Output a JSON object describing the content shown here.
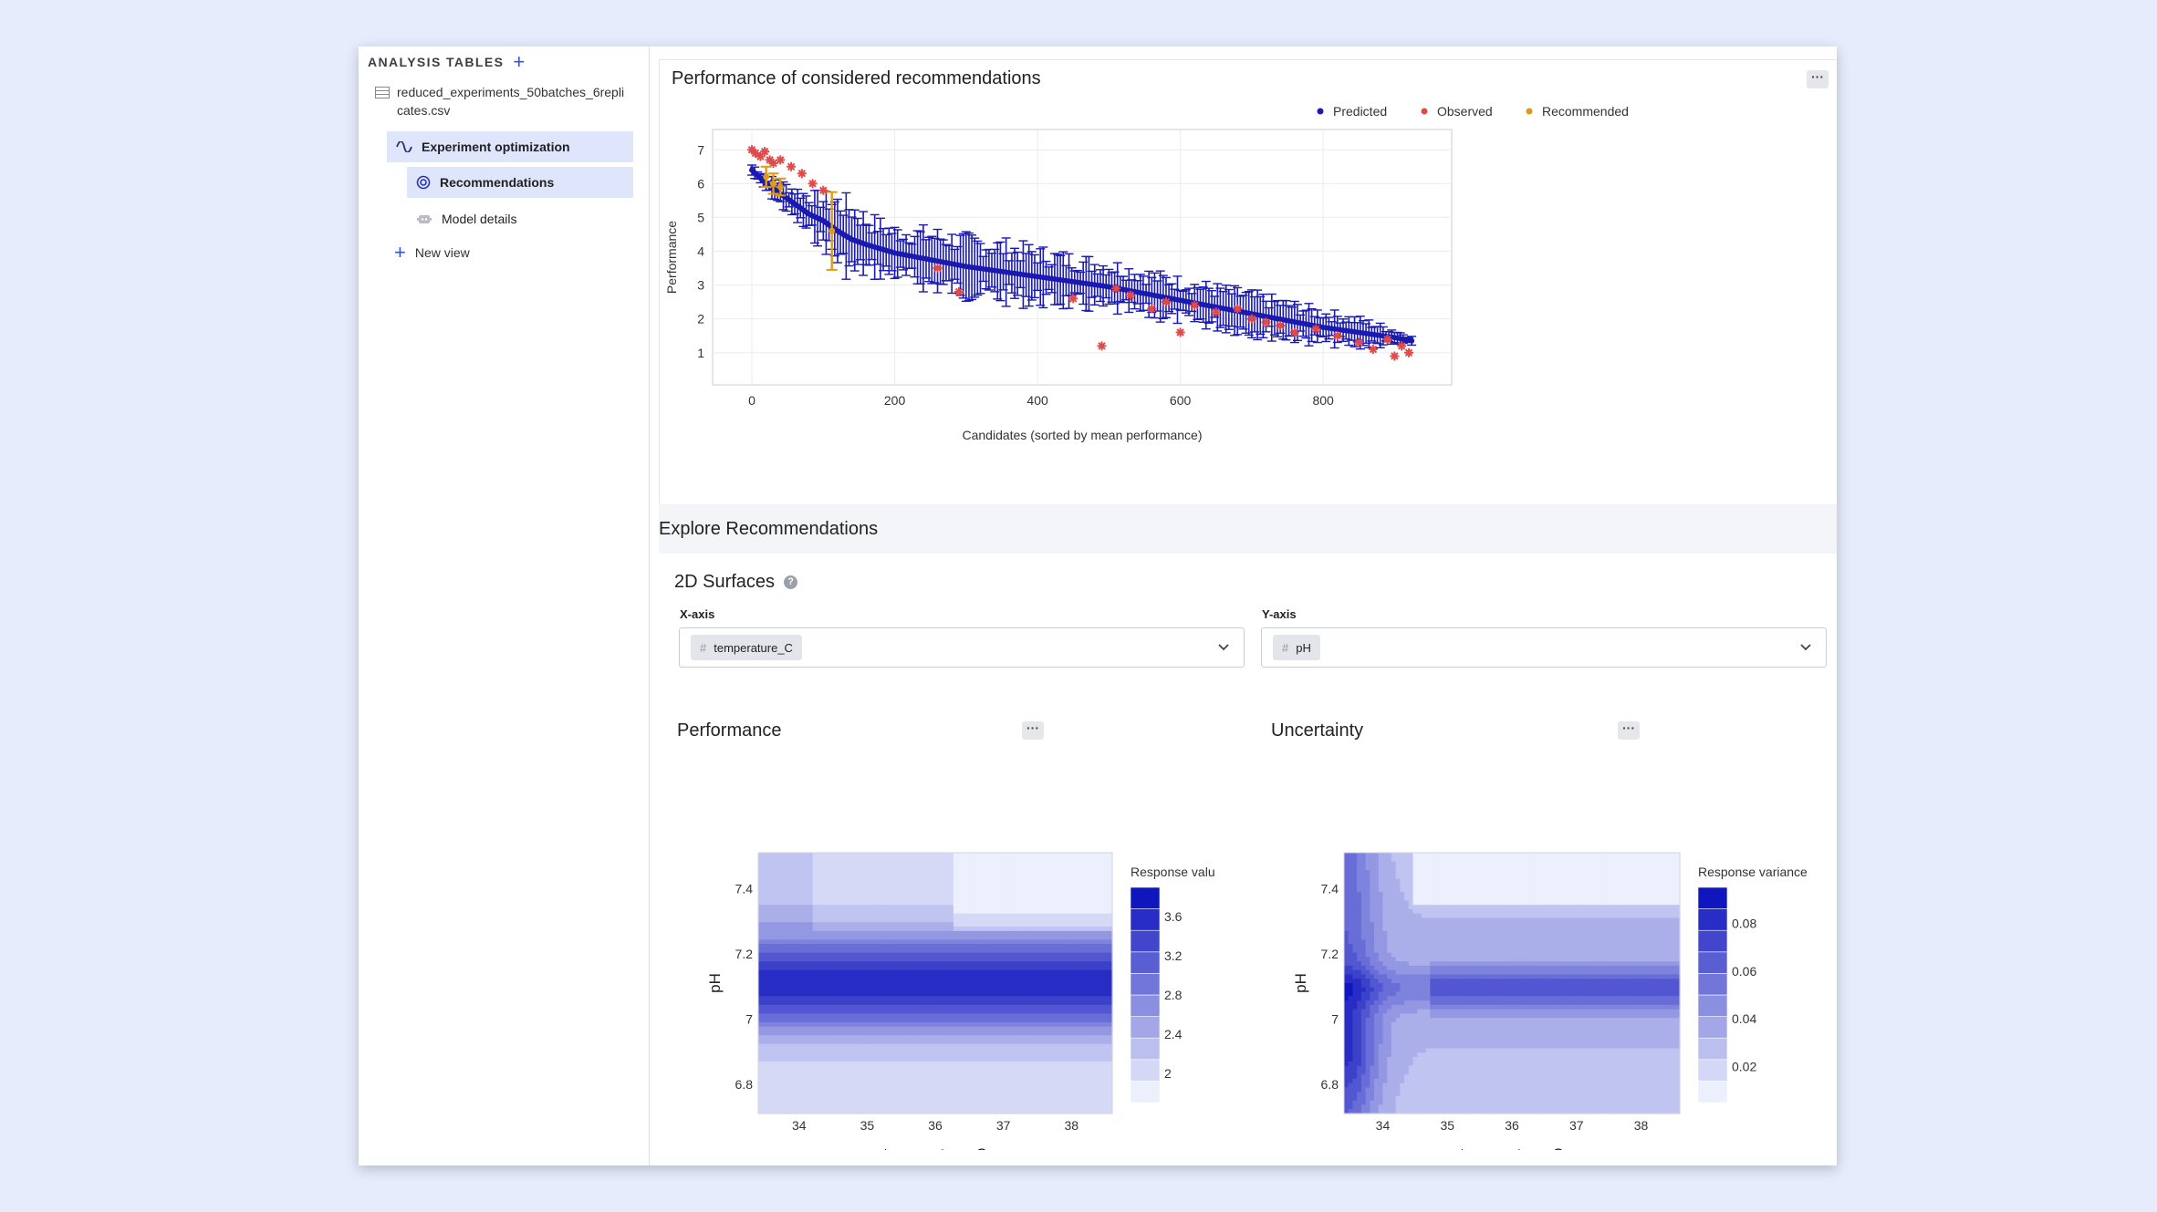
{
  "sidebar": {
    "heading": "ANALYSIS TABLES",
    "file_name": "reduced_experiments_50batches_6replicates.csv",
    "nav": [
      {
        "label": "Experiment optimization"
      },
      {
        "label": "Recommendations"
      },
      {
        "label": "Model details"
      },
      {
        "label": "New view"
      }
    ]
  },
  "main": {
    "perf_card_title": "Performance of considered recommendations",
    "more_label": "···",
    "explore_title": "Explore Recommendations",
    "surfaces_title": "2D Surfaces",
    "help_glyph": "?",
    "x_axis_label": "X-axis",
    "x_axis_value": "temperature_C",
    "y_axis_label": "Y-axis",
    "y_axis_value": "pH",
    "hash_glyph": "#",
    "performance_title": "Performance",
    "uncertainty_title": "Uncertainty"
  },
  "chart_data": [
    {
      "type": "scatter",
      "title": "",
      "xlabel": "Candidates (sorted by mean performance)",
      "ylabel": "Performance",
      "xlim": [
        -55,
        980
      ],
      "ylim": [
        0.05,
        7.6
      ],
      "x_ticks": [
        0,
        200,
        400,
        600,
        800
      ],
      "y_ticks": [
        1,
        2,
        3,
        4,
        5,
        6,
        7
      ],
      "grid": true,
      "legend_position": "top-right",
      "series": [
        {
          "name": "Predicted",
          "color": "#1a1ab0",
          "x": [
            0,
            20,
            40,
            60,
            80,
            100,
            120,
            140,
            160,
            200,
            250,
            300,
            350,
            400,
            450,
            500,
            550,
            600,
            650,
            700,
            750,
            800,
            850,
            900,
            925
          ],
          "y": [
            6.4,
            6.0,
            5.7,
            5.4,
            5.1,
            4.9,
            4.6,
            4.35,
            4.2,
            3.95,
            3.75,
            3.55,
            3.4,
            3.25,
            3.1,
            2.95,
            2.75,
            2.55,
            2.35,
            2.15,
            1.95,
            1.75,
            1.6,
            1.45,
            1.35
          ],
          "err": [
            0.15,
            0.2,
            0.3,
            0.4,
            0.5,
            0.6,
            0.8,
            0.9,
            0.7,
            0.6,
            0.7,
            0.7,
            0.7,
            0.65,
            0.6,
            0.6,
            0.55,
            0.5,
            0.5,
            0.5,
            0.45,
            0.4,
            0.35,
            0.2,
            0.1
          ]
        },
        {
          "name": "Observed",
          "color": "#e04a4a",
          "x": [
            0,
            5,
            12,
            18,
            25,
            30,
            40,
            55,
            70,
            85,
            100,
            260,
            290,
            450,
            490,
            510,
            530,
            560,
            580,
            600,
            620,
            650,
            680,
            700,
            720,
            740,
            760,
            790,
            820,
            850,
            870,
            890,
            900,
            910,
            920
          ],
          "y": [
            7.0,
            6.9,
            6.8,
            6.95,
            6.7,
            6.6,
            6.7,
            6.5,
            6.3,
            6.0,
            5.8,
            3.5,
            2.8,
            2.6,
            1.2,
            2.9,
            2.7,
            2.3,
            2.5,
            1.6,
            2.4,
            2.2,
            2.3,
            2.0,
            1.9,
            1.8,
            1.6,
            1.7,
            1.5,
            1.3,
            1.1,
            1.4,
            0.9,
            1.2,
            1.0
          ]
        },
        {
          "name": "Recommended",
          "color": "#e09a1a",
          "x": [
            20,
            30,
            40,
            112
          ],
          "y": [
            6.2,
            6.0,
            5.9,
            4.6
          ],
          "err": [
            0.3,
            0.3,
            0.25,
            1.15
          ]
        }
      ]
    },
    {
      "type": "heatmap",
      "title": "Performance",
      "xlabel": "temperature_C",
      "ylabel": "pH",
      "xlim": [
        33.4,
        38.6
      ],
      "ylim": [
        6.71,
        7.51
      ],
      "x_ticks": [
        34,
        35,
        36,
        37,
        38
      ],
      "y_ticks": [
        6.8,
        7,
        7.2,
        7.4
      ],
      "colorbar_title": "Response value",
      "colorbar_ticks": [
        2,
        2.4,
        2.8,
        3.2,
        3.6
      ],
      "colorbar_range": [
        1.7,
        3.9
      ]
    },
    {
      "type": "heatmap",
      "title": "Uncertainty",
      "xlabel": "temperature_C",
      "ylabel": "pH",
      "xlim": [
        33.4,
        38.6
      ],
      "ylim": [
        6.71,
        7.51
      ],
      "x_ticks": [
        34,
        35,
        36,
        37,
        38
      ],
      "y_ticks": [
        6.8,
        7,
        7.2,
        7.4
      ],
      "colorbar_title": "Response variance",
      "colorbar_ticks": [
        0.02,
        0.04,
        0.06,
        0.08
      ],
      "colorbar_range": [
        0.005,
        0.095
      ]
    }
  ]
}
